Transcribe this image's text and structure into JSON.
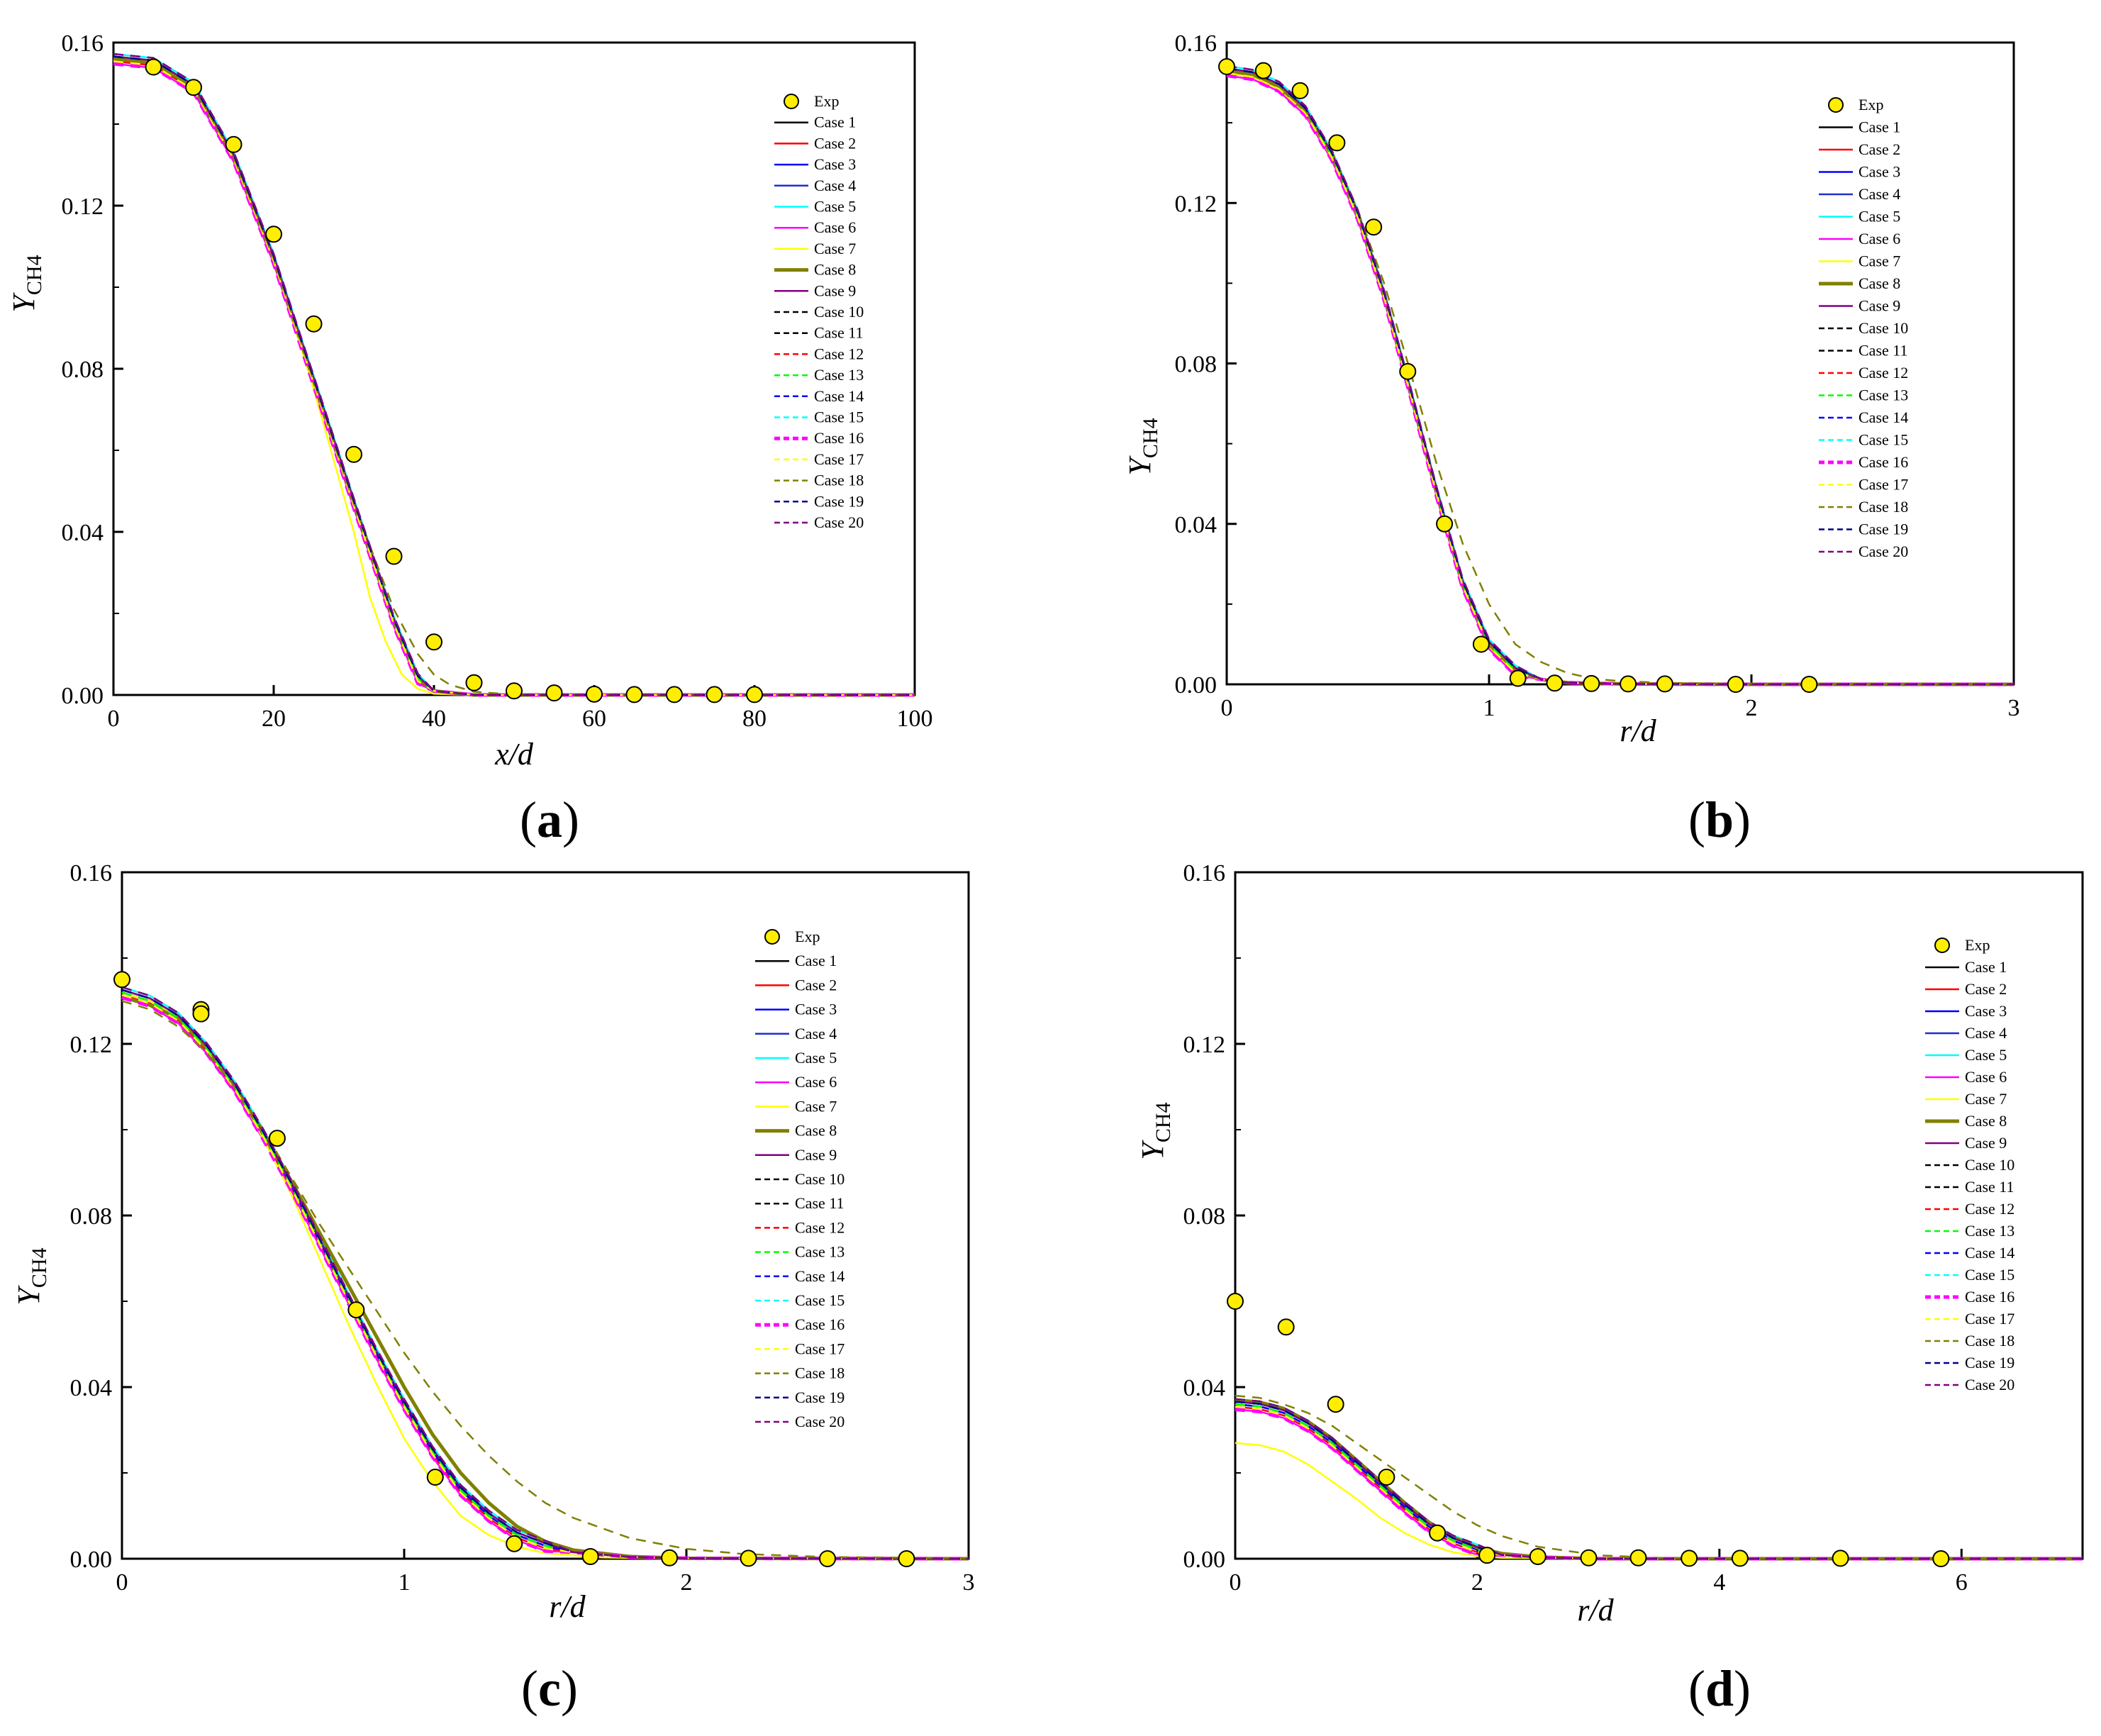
{
  "figure": {
    "panel_labels": [
      "(a)",
      "(b)",
      "(c)",
      "(d)"
    ]
  },
  "legend_entries": [
    {
      "name": "Exp",
      "color": "#FFEE00",
      "style": "marker"
    },
    {
      "name": "Case 1",
      "color": "#000000",
      "style": "solid"
    },
    {
      "name": "Case 2",
      "color": "#FF0000",
      "style": "solid"
    },
    {
      "name": "Case 3",
      "color": "#0000FF",
      "style": "solid"
    },
    {
      "name": "Case 4",
      "color": "#1F2FCC",
      "style": "solid"
    },
    {
      "name": "Case 5",
      "color": "#00FFFF",
      "style": "solid"
    },
    {
      "name": "Case 6",
      "color": "#FF00FF",
      "style": "solid"
    },
    {
      "name": "Case 7",
      "color": "#FFFF00",
      "style": "solid"
    },
    {
      "name": "Case 8",
      "color": "#808000",
      "style": "solid-thick"
    },
    {
      "name": "Case 9",
      "color": "#800080",
      "style": "solid"
    },
    {
      "name": "Case 10",
      "color": "#000000",
      "style": "dash"
    },
    {
      "name": "Case 11",
      "color": "#000000",
      "style": "dash"
    },
    {
      "name": "Case 12",
      "color": "#FF0000",
      "style": "dash"
    },
    {
      "name": "Case 13",
      "color": "#00FF00",
      "style": "dash"
    },
    {
      "name": "Case 14",
      "color": "#0000FF",
      "style": "dash"
    },
    {
      "name": "Case 15",
      "color": "#00FFFF",
      "style": "dash"
    },
    {
      "name": "Case 16",
      "color": "#FF00FF",
      "style": "dash-thick"
    },
    {
      "name": "Case 17",
      "color": "#FFFF00",
      "style": "dash"
    },
    {
      "name": "Case 18",
      "color": "#808000",
      "style": "dash"
    },
    {
      "name": "Case 19",
      "color": "#00008B",
      "style": "dash"
    },
    {
      "name": "Case 20",
      "color": "#800080",
      "style": "dash"
    }
  ],
  "chart_data": [
    {
      "panel": "(a)",
      "type": "line",
      "xlabel": "x/d",
      "ylabel": "Y_CH4",
      "xlim": [
        0,
        100
      ],
      "ylim": [
        0,
        0.16
      ],
      "xticks": [
        "0",
        "20",
        "40",
        "60",
        "80",
        "100"
      ],
      "yticks": [
        "0.00",
        "0.04",
        "0.08",
        "0.12",
        "0.16"
      ],
      "legend_position": "top-right",
      "exp": {
        "x": [
          5,
          10,
          15,
          20,
          25,
          30,
          35,
          40,
          45,
          50,
          55,
          60,
          65,
          70,
          75,
          80
        ],
        "y": [
          0.154,
          0.149,
          0.135,
          0.113,
          0.091,
          0.059,
          0.034,
          0.013,
          0.003,
          0.001,
          0.0005,
          0.0002,
          0.0001,
          0.0001,
          0.0001,
          0.0001
        ]
      },
      "series": [
        {
          "name": "Case 1",
          "x": [
            0,
            5,
            10,
            15,
            20,
            25,
            30,
            35,
            38,
            40,
            45,
            50,
            60,
            80,
            100
          ],
          "y": [
            0.156,
            0.155,
            0.149,
            0.132,
            0.107,
            0.077,
            0.047,
            0.018,
            0.004,
            0.001,
            0.0,
            0.0,
            0.0,
            0.0,
            0.0
          ]
        },
        {
          "name": "Case 7",
          "x": [
            0,
            5,
            10,
            15,
            20,
            25,
            30,
            32,
            34,
            36,
            38,
            40,
            45,
            100
          ],
          "y": [
            0.156,
            0.155,
            0.149,
            0.132,
            0.107,
            0.075,
            0.04,
            0.024,
            0.013,
            0.005,
            0.0015,
            0.0003,
            0.0,
            0.0
          ]
        },
        {
          "name": "Case 18",
          "x": [
            0,
            5,
            10,
            15,
            20,
            25,
            30,
            35,
            38,
            40,
            42,
            45,
            50,
            100
          ],
          "y": [
            0.156,
            0.155,
            0.149,
            0.132,
            0.107,
            0.077,
            0.047,
            0.021,
            0.01,
            0.005,
            0.0025,
            0.0008,
            0.0001,
            0.0
          ]
        }
      ]
    },
    {
      "panel": "(b)",
      "type": "line",
      "xlabel": "r/d",
      "ylabel": "Y_CH4",
      "xlim": [
        0,
        3
      ],
      "ylim": [
        0,
        0.16
      ],
      "xticks": [
        "0",
        "1",
        "2",
        "3"
      ],
      "yticks": [
        "0.00",
        "0.04",
        "0.08",
        "0.12",
        "0.16"
      ],
      "legend_position": "top-right",
      "exp": {
        "x": [
          0,
          0.14,
          0.28,
          0.42,
          0.56,
          0.69,
          0.83,
          0.97,
          1.11,
          1.25,
          1.39,
          1.53,
          1.67,
          1.94,
          2.22
        ],
        "y": [
          0.154,
          0.153,
          0.148,
          0.135,
          0.114,
          0.078,
          0.04,
          0.01,
          0.0015,
          0.0003,
          0.0002,
          0.0001,
          0.0001,
          0.0,
          0.0
        ]
      },
      "series": [
        {
          "name": "Case 1",
          "x": [
            0,
            0.1,
            0.2,
            0.3,
            0.4,
            0.5,
            0.6,
            0.7,
            0.8,
            0.9,
            1.0,
            1.1,
            1.2,
            1.3,
            1.5,
            2.0,
            3.0
          ],
          "y": [
            0.153,
            0.152,
            0.149,
            0.143,
            0.132,
            0.117,
            0.097,
            0.073,
            0.048,
            0.025,
            0.01,
            0.0035,
            0.0012,
            0.0004,
            0.0001,
            0.0,
            0.0
          ]
        },
        {
          "name": "Case 18",
          "x": [
            0,
            0.1,
            0.2,
            0.3,
            0.4,
            0.5,
            0.6,
            0.7,
            0.8,
            0.9,
            1.0,
            1.1,
            1.2,
            1.3,
            1.4,
            1.5,
            1.7,
            2.0,
            3.0
          ],
          "y": [
            0.153,
            0.152,
            0.149,
            0.143,
            0.133,
            0.118,
            0.1,
            0.078,
            0.055,
            0.035,
            0.02,
            0.01,
            0.0055,
            0.0028,
            0.0014,
            0.0008,
            0.0003,
            0.0001,
            0.0
          ]
        }
      ]
    },
    {
      "panel": "(c)",
      "type": "line",
      "xlabel": "r/d",
      "ylabel": "Y_CH4",
      "xlim": [
        0,
        3
      ],
      "ylim": [
        0,
        0.16
      ],
      "xticks": [
        "0",
        "1",
        "2",
        "3"
      ],
      "yticks": [
        "0.00",
        "0.04",
        "0.08",
        "0.12",
        "0.16"
      ],
      "legend_position": "top-right",
      "exp": {
        "x": [
          0,
          0.28,
          0.28,
          0.55,
          0.83,
          1.11,
          1.39,
          1.66,
          1.94,
          2.22,
          2.5,
          2.78
        ],
        "y": [
          0.135,
          0.128,
          0.127,
          0.098,
          0.058,
          0.019,
          0.0035,
          0.0005,
          0.0002,
          0.0001,
          0.0,
          0.0
        ]
      },
      "series": [
        {
          "name": "Case 1",
          "x": [
            0,
            0.1,
            0.2,
            0.3,
            0.4,
            0.5,
            0.6,
            0.7,
            0.8,
            0.9,
            1.0,
            1.1,
            1.2,
            1.3,
            1.4,
            1.5,
            1.6,
            1.8,
            2.0,
            3.0
          ],
          "y": [
            0.132,
            0.13,
            0.126,
            0.119,
            0.11,
            0.099,
            0.087,
            0.074,
            0.061,
            0.048,
            0.036,
            0.025,
            0.016,
            0.01,
            0.0055,
            0.003,
            0.0015,
            0.0004,
            0.0001,
            0.0
          ]
        },
        {
          "name": "Case 7",
          "x": [
            0,
            0.1,
            0.2,
            0.3,
            0.4,
            0.5,
            0.6,
            0.7,
            0.8,
            0.9,
            1.0,
            1.1,
            1.2,
            1.3,
            1.4,
            1.5,
            1.7,
            2.0,
            3.0
          ],
          "y": [
            0.132,
            0.13,
            0.126,
            0.119,
            0.11,
            0.098,
            0.085,
            0.07,
            0.055,
            0.041,
            0.028,
            0.018,
            0.01,
            0.0055,
            0.0028,
            0.0013,
            0.0003,
            0.0,
            0.0
          ]
        },
        {
          "name": "Case 8",
          "x": [
            0,
            0.1,
            0.2,
            0.3,
            0.4,
            0.5,
            0.6,
            0.7,
            0.8,
            0.9,
            1.0,
            1.1,
            1.2,
            1.3,
            1.4,
            1.5,
            1.6,
            1.8,
            2.0,
            3.0
          ],
          "y": [
            0.131,
            0.129,
            0.126,
            0.119,
            0.11,
            0.099,
            0.088,
            0.076,
            0.064,
            0.052,
            0.04,
            0.029,
            0.02,
            0.013,
            0.0075,
            0.004,
            0.002,
            0.0005,
            0.0001,
            0.0
          ]
        },
        {
          "name": "Case 18",
          "x": [
            0,
            0.1,
            0.2,
            0.3,
            0.4,
            0.5,
            0.6,
            0.7,
            0.8,
            0.9,
            1.0,
            1.1,
            1.2,
            1.3,
            1.4,
            1.5,
            1.6,
            1.8,
            2.0,
            2.2,
            2.5,
            3.0
          ],
          "y": [
            0.13,
            0.128,
            0.124,
            0.118,
            0.11,
            0.1,
            0.089,
            0.078,
            0.068,
            0.058,
            0.048,
            0.039,
            0.031,
            0.024,
            0.018,
            0.013,
            0.0095,
            0.0048,
            0.0023,
            0.0011,
            0.0004,
            0.0001
          ]
        }
      ]
    },
    {
      "panel": "(d)",
      "type": "line",
      "xlabel": "r/d",
      "ylabel": "Y_CH4",
      "xlim": [
        0,
        7
      ],
      "ylim": [
        0,
        0.16
      ],
      "xticks": [
        "0",
        "2",
        "4",
        "6"
      ],
      "yticks": [
        "0.00",
        "0.04",
        "0.08",
        "0.12",
        "0.16"
      ],
      "legend_position": "top-right",
      "exp": {
        "x": [
          0,
          0.42,
          0.83,
          1.25,
          1.67,
          2.08,
          2.5,
          2.92,
          3.33,
          3.75,
          4.17,
          5.0,
          5.83
        ],
        "y": [
          0.06,
          0.054,
          0.036,
          0.019,
          0.006,
          0.0008,
          0.0005,
          0.0002,
          0.0002,
          0.0001,
          0.0001,
          0.0001,
          0.0
        ]
      },
      "series": [
        {
          "name": "Case 1",
          "x": [
            0,
            0.2,
            0.4,
            0.6,
            0.8,
            1.0,
            1.2,
            1.4,
            1.6,
            1.8,
            2.0,
            2.2,
            2.5,
            3.0,
            7.0
          ],
          "y": [
            0.036,
            0.0355,
            0.034,
            0.031,
            0.027,
            0.022,
            0.017,
            0.012,
            0.0075,
            0.0042,
            0.0021,
            0.0009,
            0.0003,
            0.0,
            0.0
          ]
        },
        {
          "name": "Case 7",
          "x": [
            0,
            0.2,
            0.4,
            0.6,
            0.8,
            1.0,
            1.2,
            1.4,
            1.6,
            1.8,
            2.0,
            2.2,
            7.0
          ],
          "y": [
            0.027,
            0.0265,
            0.025,
            0.022,
            0.018,
            0.014,
            0.0095,
            0.006,
            0.0033,
            0.0015,
            0.0006,
            0.0002,
            0.0
          ]
        },
        {
          "name": "Case 8",
          "x": [
            0,
            0.2,
            0.4,
            0.6,
            0.8,
            1.0,
            1.2,
            1.4,
            1.6,
            1.8,
            2.0,
            2.2,
            2.5,
            3.0,
            7.0
          ],
          "y": [
            0.037,
            0.0365,
            0.035,
            0.032,
            0.028,
            0.023,
            0.018,
            0.013,
            0.0085,
            0.005,
            0.0026,
            0.0012,
            0.0004,
            0.0,
            0.0
          ]
        },
        {
          "name": "Case 18",
          "x": [
            0,
            0.2,
            0.4,
            0.6,
            0.8,
            1.0,
            1.2,
            1.4,
            1.6,
            1.8,
            2.0,
            2.2,
            2.5,
            3.0,
            3.5,
            4.0,
            7.0
          ],
          "y": [
            0.038,
            0.0375,
            0.036,
            0.034,
            0.031,
            0.027,
            0.023,
            0.019,
            0.015,
            0.011,
            0.0078,
            0.0053,
            0.0028,
            0.0008,
            0.0002,
            0.0001,
            0.0
          ]
        }
      ]
    }
  ]
}
